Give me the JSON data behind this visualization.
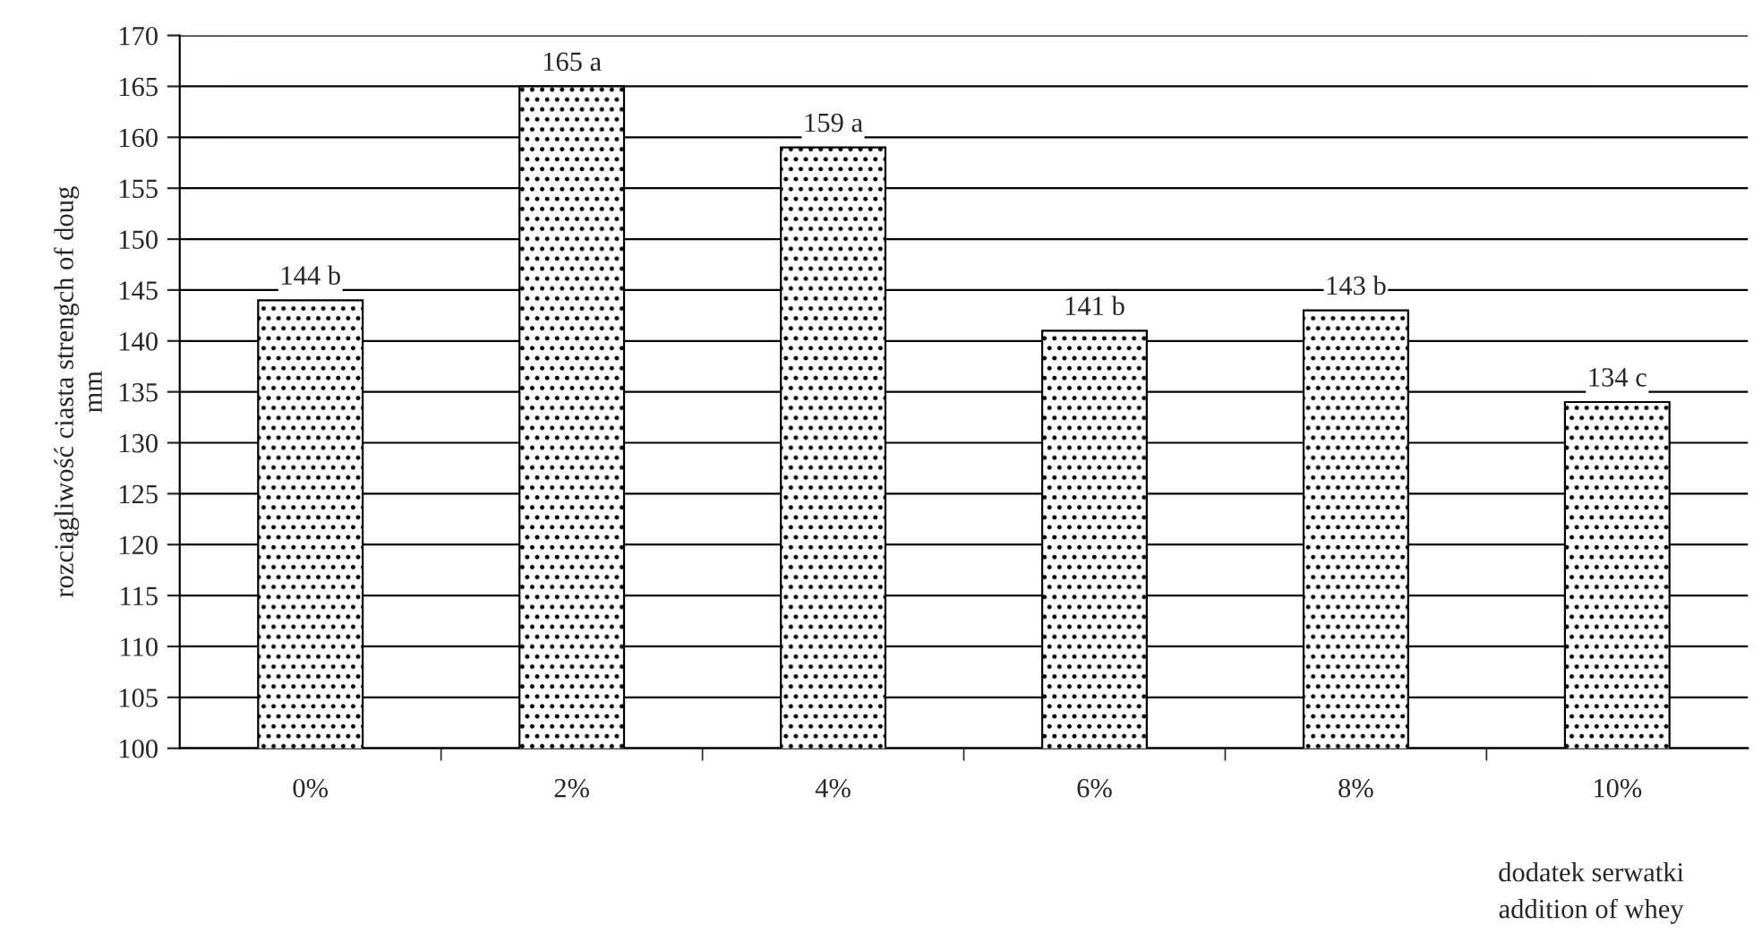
{
  "chart_data": {
    "type": "bar",
    "categories": [
      "0%",
      "2%",
      "4%",
      "6%",
      "8%",
      "10%"
    ],
    "values": [
      144,
      165,
      159,
      141,
      143,
      134
    ],
    "value_labels": [
      "144 b",
      "165 a",
      "159 a",
      "141 b",
      "143 b",
      "134 c"
    ],
    "color": "#000000",
    "ylabel": "rozciągliwość ciasta strengch of doug\nmm",
    "xlabel": "dodatek serwatki\naddition of whey",
    "ylim": [
      100,
      170
    ],
    "yticks": [
      100,
      105,
      110,
      115,
      120,
      125,
      130,
      135,
      140,
      145,
      150,
      155,
      160,
      165,
      170
    ],
    "grid": "y"
  }
}
